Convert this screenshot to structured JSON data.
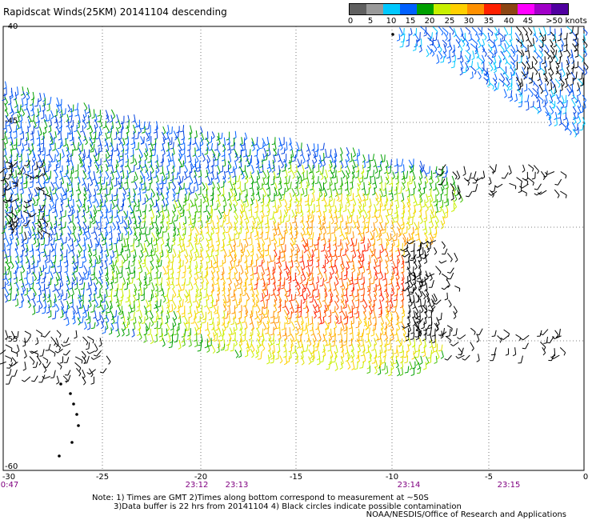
{
  "title": "Rapidscat Winds(25KM) 20141104 descending",
  "legend": {
    "labels": [
      "0",
      "5",
      "10",
      "15",
      "20",
      "25",
      "30",
      "35",
      "40",
      "45",
      ">50 knots"
    ],
    "colors": [
      "#606060",
      "#9a9a9a",
      "#00c8ff",
      "#0060ff",
      "#00a000",
      "#c8f000",
      "#ffd000",
      "#ff9000",
      "#ff2000",
      "#8b4513",
      "#ff00ff",
      "#a000c8",
      "#5000a0"
    ]
  },
  "axes": {
    "lat_labels": [
      "-40",
      "-45",
      "-50",
      "-55",
      "-60"
    ],
    "lon_labels": [
      "-30",
      "-25",
      "-20",
      "-15",
      "-10",
      "-5",
      "0"
    ]
  },
  "times": [
    "0:47",
    "23:12",
    "23:13",
    "23:14",
    "23:15"
  ],
  "notes": {
    "line1": "Note: 1) Times are GMT 2)Times along bottom correspond to measurement at ~50S",
    "line2": "3)Data buffer is 22 hrs from 20141104 4) Black circles indicate possible contamination"
  },
  "credit": "NOAA/NESDIS/Office of Research and Applications"
}
